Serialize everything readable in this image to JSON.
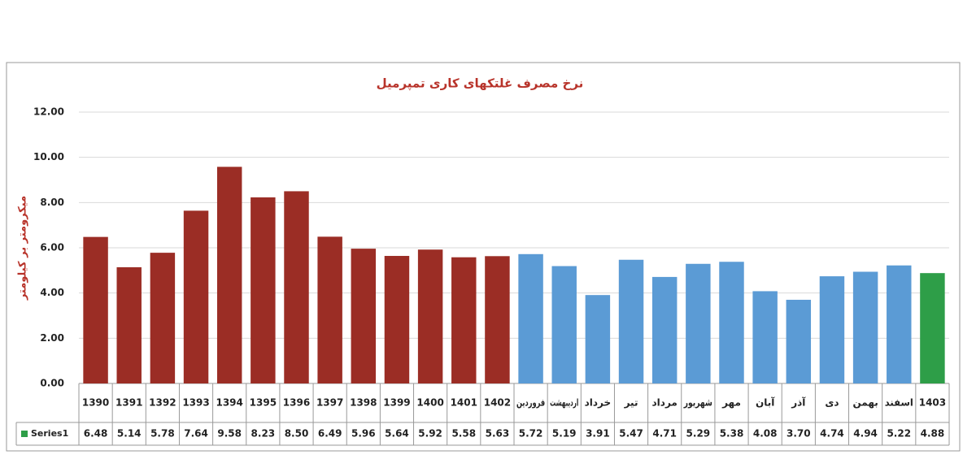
{
  "chart_data": {
    "type": "bar",
    "title": "نرخ مصرف غلتکهای کاری تمپرمیل",
    "y_label": "میکرومتر بر کیلومتر",
    "categories": [
      "1390",
      "1391",
      "1392",
      "1393",
      "1394",
      "1395",
      "1396",
      "1397",
      "1398",
      "1399",
      "1400",
      "1401",
      "1402",
      "فروردین",
      "اردیبهشت",
      "خرداد",
      "تیر",
      "مرداد",
      "شهریور",
      "مهر",
      "آبان",
      "آذر",
      "دی",
      "بهمن",
      "اسفند",
      "1403"
    ],
    "series": [
      {
        "name": "Series1",
        "color": "#2e9e48",
        "values": [
          6.48,
          5.14,
          5.78,
          7.64,
          9.58,
          8.23,
          8.5,
          6.49,
          5.96,
          5.64,
          5.92,
          5.58,
          5.63,
          5.72,
          5.19,
          3.91,
          5.47,
          4.71,
          5.29,
          5.38,
          4.08,
          3.7,
          4.74,
          4.94,
          5.22,
          4.88
        ],
        "value_labels": [
          "6.48",
          "5.14",
          "5.78",
          "7.64",
          "9.58",
          "8.23",
          "8.50",
          "6.49",
          "5.96",
          "5.64",
          "5.92",
          "5.58",
          "5.63",
          "5.72",
          "5.19",
          "3.91",
          "5.47",
          "4.71",
          "5.29",
          "5.38",
          "4.08",
          "3.70",
          "4.74",
          "4.94",
          "5.22",
          "4.88"
        ],
        "point_colors": [
          "#9b2d25",
          "#9b2d25",
          "#9b2d25",
          "#9b2d25",
          "#9b2d25",
          "#9b2d25",
          "#9b2d25",
          "#9b2d25",
          "#9b2d25",
          "#9b2d25",
          "#9b2d25",
          "#9b2d25",
          "#9b2d25",
          "#5b9bd5",
          "#5b9bd5",
          "#5b9bd5",
          "#5b9bd5",
          "#5b9bd5",
          "#5b9bd5",
          "#5b9bd5",
          "#5b9bd5",
          "#5b9bd5",
          "#5b9bd5",
          "#5b9bd5",
          "#5b9bd5",
          "#2e9e48"
        ]
      }
    ],
    "ylim": [
      0,
      12
    ],
    "yticks": [
      {
        "value": 0,
        "label": "0.00"
      },
      {
        "value": 2,
        "label": "2.00"
      },
      {
        "value": 4,
        "label": "4.00"
      },
      {
        "value": 6,
        "label": "6.00"
      },
      {
        "value": 8,
        "label": "8.00"
      },
      {
        "value": 10,
        "label": "10.00"
      },
      {
        "value": 12,
        "label": "12.00"
      }
    ],
    "grid": true
  }
}
